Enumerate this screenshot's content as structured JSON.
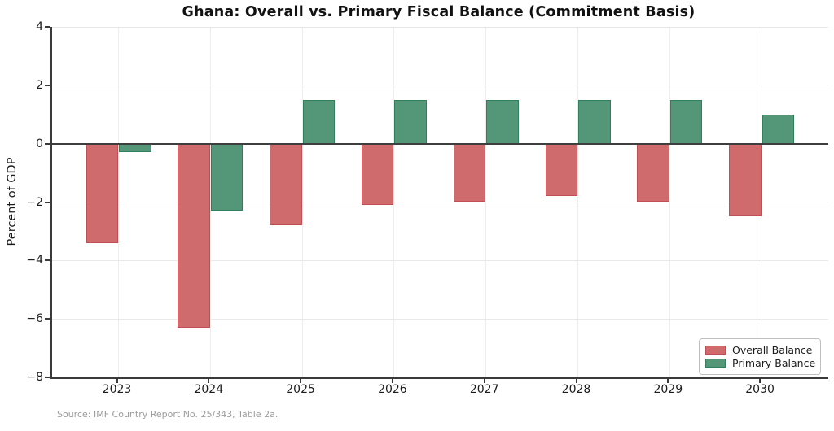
{
  "title": "Ghana: Overall vs. Primary Fiscal Balance (Commitment Basis)",
  "source_note": "Source: IMF Country Report No. 25/343, Table 2a.",
  "chart_data": {
    "type": "bar",
    "title": "Ghana: Overall vs. Primary Fiscal Balance (Commitment Basis)",
    "categories": [
      "2023",
      "2024",
      "2025",
      "2026",
      "2027",
      "2028",
      "2029",
      "2030"
    ],
    "series": [
      {
        "name": "Overall Balance",
        "values": [
          -3.4,
          -6.3,
          -2.8,
          -2.1,
          -2.0,
          -1.8,
          -2.0,
          -2.5
        ],
        "fill_color": "#cf6b6d",
        "edge_color": "#c24d52"
      },
      {
        "name": "Primary Balance",
        "values": [
          -0.3,
          -2.3,
          1.5,
          1.5,
          1.5,
          1.5,
          1.5,
          1.0
        ],
        "fill_color": "#539678",
        "edge_color": "#2f815e"
      }
    ],
    "xlabel": "",
    "ylabel": "Percent of GDP",
    "ylim": [
      -8,
      4
    ],
    "yticks": [
      4,
      2,
      0,
      -2,
      -4,
      -6,
      -8
    ],
    "grid": true,
    "zero_line": true,
    "legend_position": "lower right",
    "grid_color": "#e8e8e8",
    "axis_color": "#3a3a3a"
  }
}
